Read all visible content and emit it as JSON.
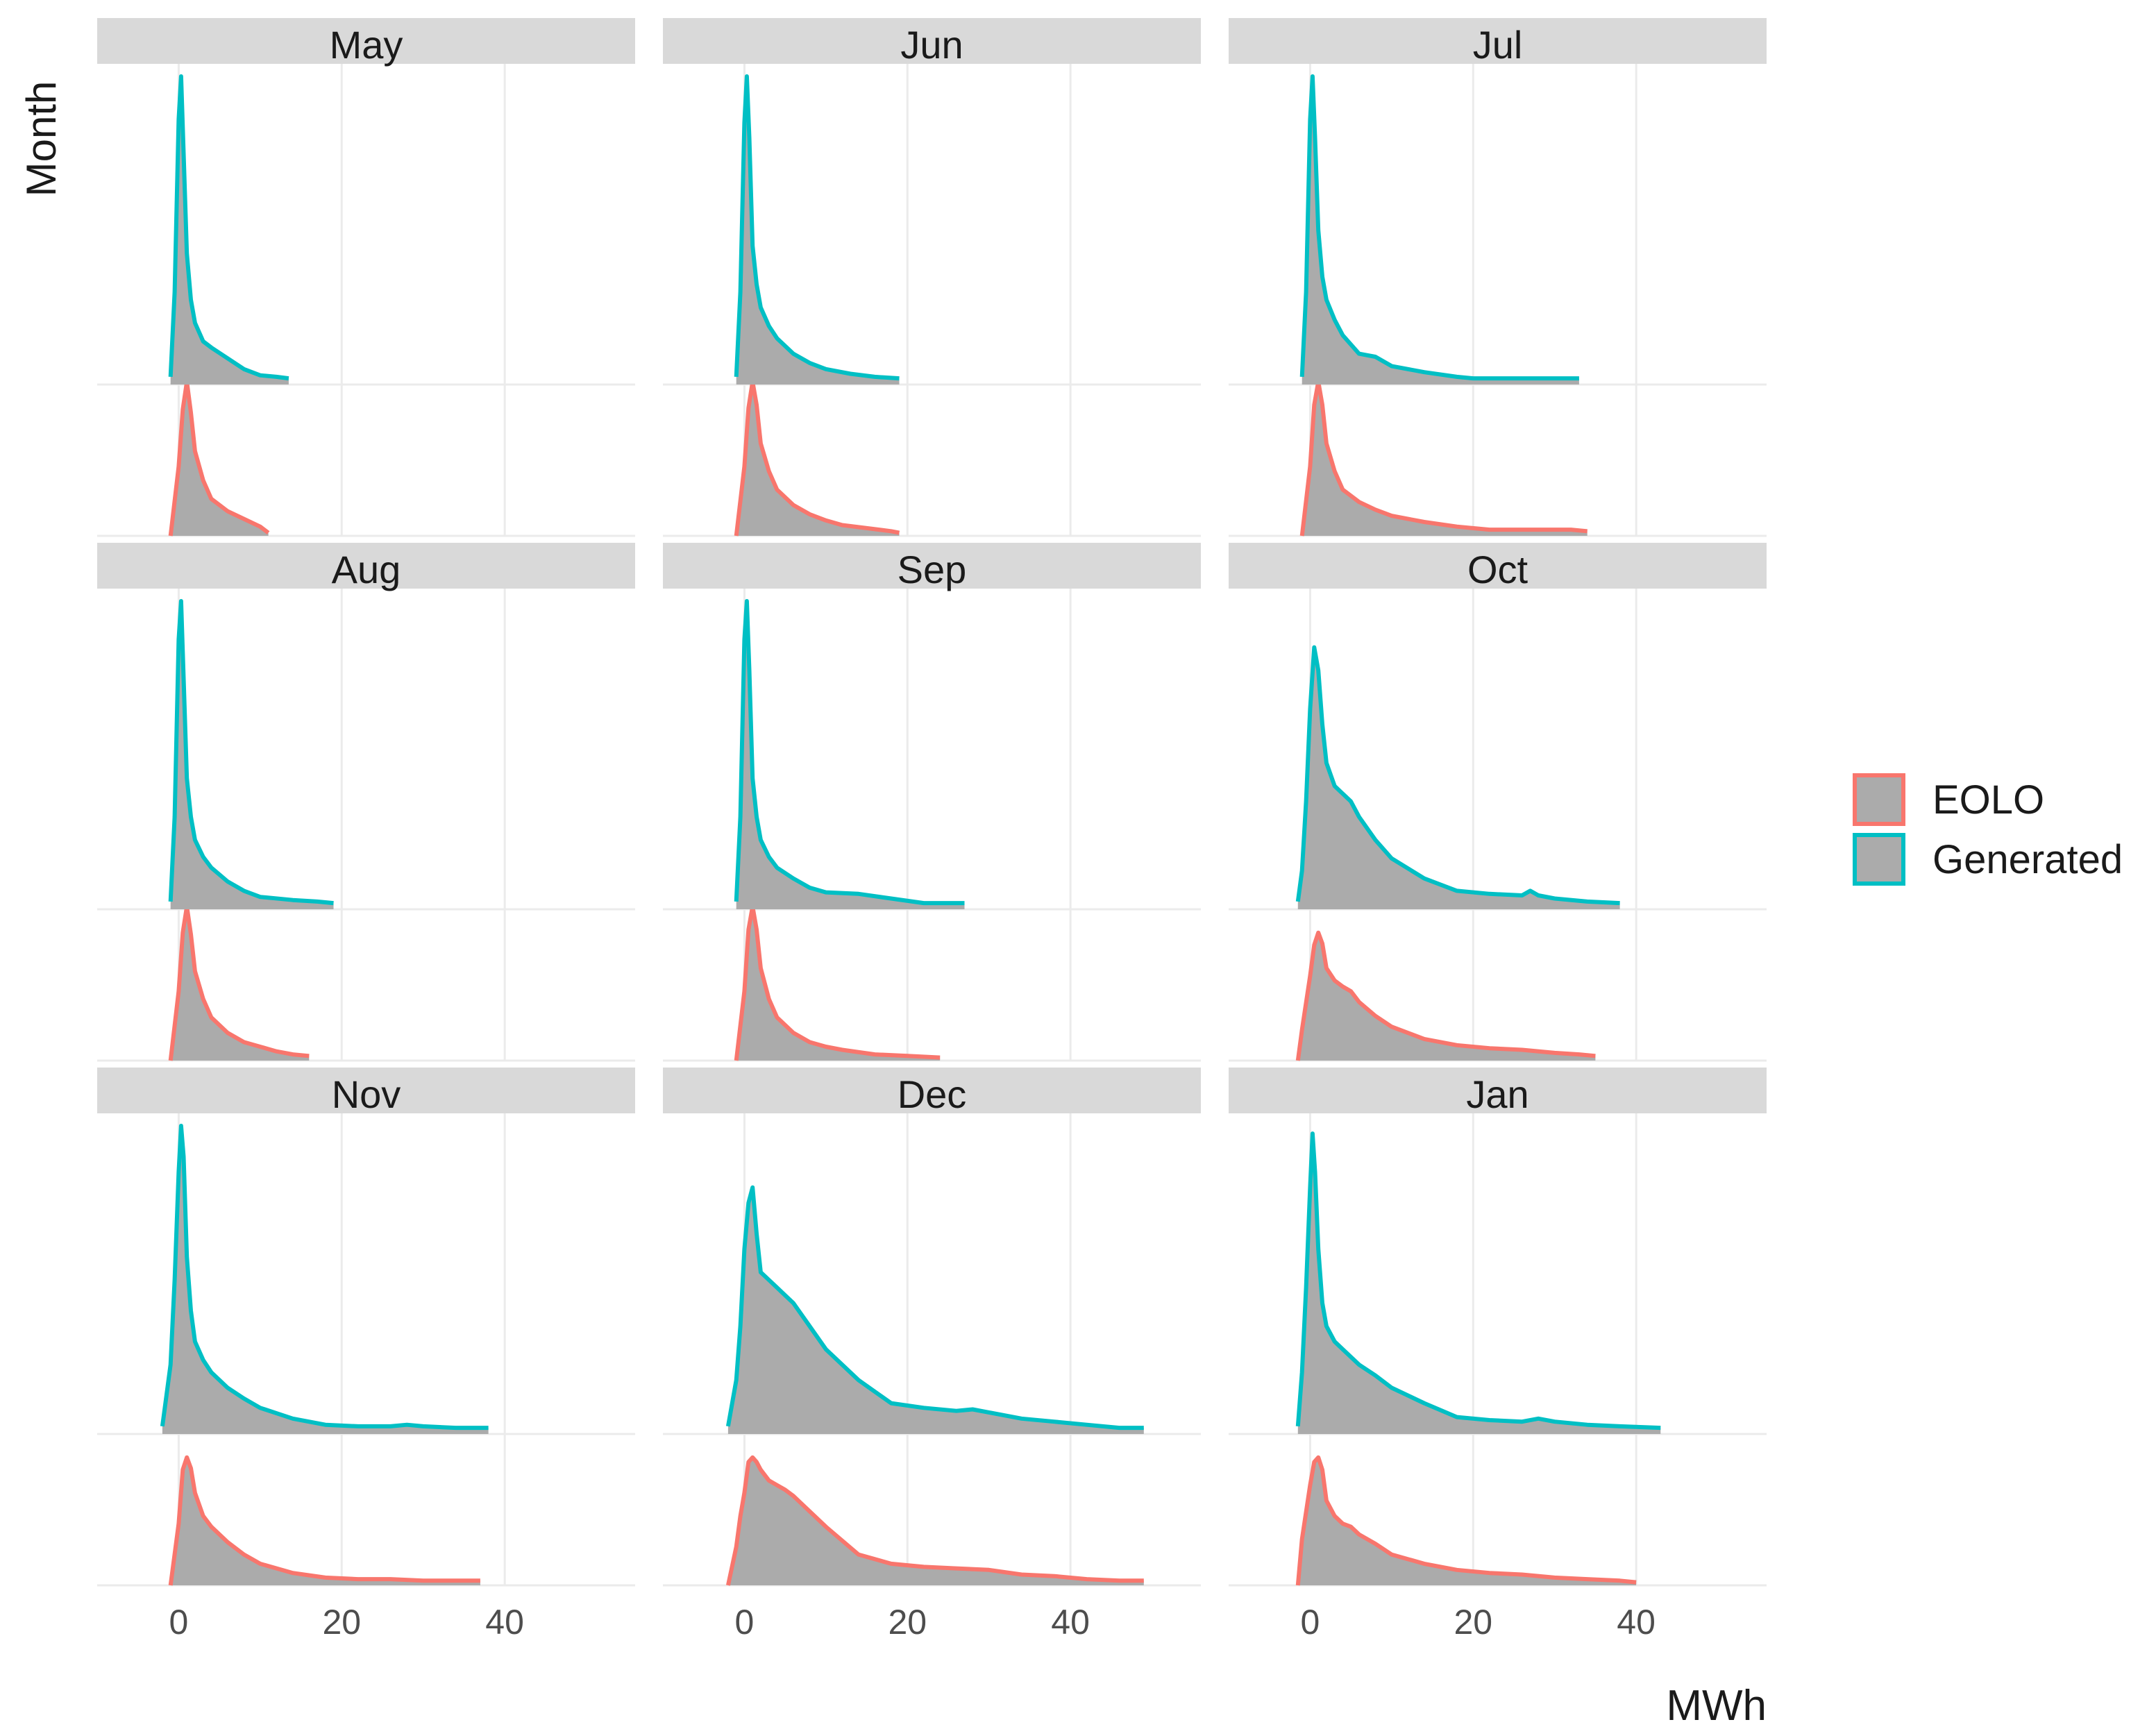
{
  "chart_data": {
    "type": "area",
    "subtype": "faceted ridgeline density",
    "xlabel": "MWh",
    "ylabel": "Month",
    "xlim": [
      -10,
      56
    ],
    "x_ticks": [
      0,
      20,
      40
    ],
    "grid": true,
    "legend_position": "right",
    "legend": [
      {
        "name": "EOLO",
        "color": "#F8766D",
        "fill": "#ABABAB"
      },
      {
        "name": "Generated",
        "color": "#00BFC4",
        "fill": "#ABABAB"
      }
    ],
    "series_order_bottom_to_top": [
      "EOLO",
      "Generated"
    ],
    "facets": [
      {
        "label": "May",
        "EOLO": {
          "x": [
            -1,
            0,
            0.5,
            1,
            1.5,
            2,
            3,
            4,
            6,
            8,
            10,
            11
          ],
          "y": [
            0,
            0.45,
            0.82,
            1.0,
            0.8,
            0.55,
            0.36,
            0.24,
            0.16,
            0.11,
            0.06,
            0.02
          ]
        },
        "Generated": {
          "x": [
            -1,
            -0.5,
            0,
            0.3,
            0.6,
            1,
            1.5,
            2,
            3,
            4,
            6,
            8,
            10,
            12,
            13.5
          ],
          "y": [
            0.05,
            0.6,
            1.72,
            2.0,
            1.5,
            0.85,
            0.55,
            0.4,
            0.28,
            0.24,
            0.17,
            0.1,
            0.06,
            0.05,
            0.04
          ]
        }
      },
      {
        "label": "Jun",
        "EOLO": {
          "x": [
            -1,
            0,
            0.5,
            1,
            1.5,
            2,
            3,
            4,
            6,
            8,
            10,
            12,
            15,
            18,
            19
          ],
          "y": [
            0,
            0.45,
            0.83,
            1.0,
            0.85,
            0.6,
            0.42,
            0.3,
            0.2,
            0.14,
            0.1,
            0.07,
            0.05,
            0.03,
            0.02
          ]
        },
        "Generated": {
          "x": [
            -1,
            -0.5,
            0,
            0.3,
            0.6,
            1,
            1.5,
            2,
            3,
            4,
            6,
            8,
            10,
            13,
            16,
            19
          ],
          "y": [
            0.05,
            0.6,
            1.7,
            2.0,
            1.6,
            0.9,
            0.65,
            0.5,
            0.38,
            0.3,
            0.2,
            0.14,
            0.1,
            0.07,
            0.05,
            0.04
          ]
        }
      },
      {
        "label": "Jul",
        "EOLO": {
          "x": [
            -1,
            0,
            0.5,
            1,
            1.5,
            2,
            3,
            4,
            6,
            8,
            10,
            14,
            18,
            22,
            32,
            34
          ],
          "y": [
            0,
            0.45,
            0.85,
            1.0,
            0.85,
            0.6,
            0.42,
            0.3,
            0.22,
            0.17,
            0.13,
            0.09,
            0.06,
            0.04,
            0.04,
            0.03
          ]
        },
        "Generated": {
          "x": [
            -1,
            -0.5,
            0,
            0.3,
            0.6,
            1,
            1.5,
            2,
            3,
            4,
            6,
            8,
            10,
            14,
            18,
            20,
            24,
            32,
            33
          ],
          "y": [
            0.05,
            0.6,
            1.72,
            2.0,
            1.6,
            1.0,
            0.7,
            0.55,
            0.42,
            0.32,
            0.2,
            0.18,
            0.12,
            0.08,
            0.05,
            0.04,
            0.04,
            0.04,
            0.04
          ]
        }
      },
      {
        "label": "Aug",
        "EOLO": {
          "x": [
            -1,
            0,
            0.5,
            1,
            1.5,
            2,
            3,
            4,
            6,
            8,
            10,
            12,
            14,
            16
          ],
          "y": [
            0,
            0.45,
            0.83,
            1.0,
            0.82,
            0.58,
            0.4,
            0.28,
            0.18,
            0.12,
            0.09,
            0.06,
            0.04,
            0.03
          ]
        },
        "Generated": {
          "x": [
            -1,
            -0.5,
            0,
            0.3,
            0.6,
            1,
            1.5,
            2,
            3,
            4,
            6,
            8,
            10,
            14,
            17,
            19
          ],
          "y": [
            0.05,
            0.6,
            1.75,
            2.0,
            1.5,
            0.85,
            0.6,
            0.45,
            0.34,
            0.27,
            0.18,
            0.12,
            0.08,
            0.06,
            0.05,
            0.04
          ]
        }
      },
      {
        "label": "Sep",
        "EOLO": {
          "x": [
            -1,
            0,
            0.5,
            1,
            1.5,
            2,
            3,
            4,
            6,
            8,
            10,
            12,
            16,
            20,
            24
          ],
          "y": [
            0,
            0.45,
            0.85,
            1.0,
            0.85,
            0.6,
            0.4,
            0.28,
            0.18,
            0.12,
            0.09,
            0.07,
            0.04,
            0.03,
            0.02
          ]
        },
        "Generated": {
          "x": [
            -1,
            -0.5,
            0,
            0.3,
            0.6,
            1,
            1.5,
            2,
            3,
            4,
            6,
            8,
            10,
            14,
            18,
            22,
            27
          ],
          "y": [
            0.05,
            0.6,
            1.75,
            2.0,
            1.55,
            0.85,
            0.6,
            0.45,
            0.34,
            0.27,
            0.2,
            0.14,
            0.11,
            0.1,
            0.07,
            0.04,
            0.04
          ]
        }
      },
      {
        "label": "Oct",
        "EOLO": {
          "x": [
            -1.5,
            -1,
            0,
            0.5,
            1,
            1.5,
            2,
            3,
            4,
            5,
            6,
            8,
            10,
            14,
            18,
            22,
            26,
            30,
            33,
            35
          ],
          "y": [
            0,
            0.2,
            0.55,
            0.75,
            0.83,
            0.76,
            0.6,
            0.52,
            0.48,
            0.45,
            0.38,
            0.29,
            0.22,
            0.14,
            0.1,
            0.08,
            0.07,
            0.05,
            0.04,
            0.03
          ]
        },
        "Generated": {
          "x": [
            -1.5,
            -1,
            -0.5,
            0,
            0.5,
            1,
            1.5,
            2,
            3,
            4,
            5,
            6,
            8,
            10,
            14,
            18,
            22,
            26,
            27,
            28,
            30,
            34,
            38
          ],
          "y": [
            0.05,
            0.25,
            0.7,
            1.3,
            1.7,
            1.55,
            1.2,
            0.95,
            0.8,
            0.75,
            0.7,
            0.6,
            0.45,
            0.33,
            0.2,
            0.12,
            0.1,
            0.09,
            0.12,
            0.09,
            0.07,
            0.05,
            0.04
          ]
        }
      },
      {
        "label": "Nov",
        "EOLO": {
          "x": [
            -1,
            0,
            0.5,
            1,
            1.5,
            2,
            3,
            4,
            6,
            8,
            10,
            14,
            18,
            22,
            26,
            30,
            33,
            37
          ],
          "y": [
            0,
            0.4,
            0.75,
            0.83,
            0.76,
            0.6,
            0.45,
            0.38,
            0.28,
            0.2,
            0.14,
            0.08,
            0.05,
            0.04,
            0.04,
            0.03,
            0.03,
            0.03
          ]
        },
        "Generated": {
          "x": [
            -2,
            -1,
            -0.5,
            0,
            0.3,
            0.6,
            1,
            1.5,
            2,
            3,
            4,
            6,
            8,
            10,
            14,
            18,
            22,
            26,
            28,
            30,
            34,
            38
          ],
          "y": [
            0.05,
            0.45,
            1.0,
            1.7,
            2.0,
            1.8,
            1.15,
            0.8,
            0.6,
            0.48,
            0.4,
            0.3,
            0.23,
            0.17,
            0.1,
            0.06,
            0.05,
            0.05,
            0.06,
            0.05,
            0.04,
            0.04
          ]
        }
      },
      {
        "label": "Dec",
        "EOLO": {
          "x": [
            -2,
            -1,
            -0.5,
            0,
            0.5,
            1,
            1.5,
            2,
            3,
            4,
            5,
            6,
            8,
            10,
            12,
            14,
            18,
            22,
            26,
            30,
            34,
            38,
            42,
            46,
            49
          ],
          "y": [
            0,
            0.25,
            0.45,
            0.6,
            0.8,
            0.83,
            0.8,
            0.75,
            0.68,
            0.65,
            0.62,
            0.58,
            0.48,
            0.38,
            0.29,
            0.2,
            0.14,
            0.12,
            0.11,
            0.1,
            0.07,
            0.06,
            0.04,
            0.03,
            0.03
          ]
        },
        "Generated": {
          "x": [
            -2,
            -1,
            -0.5,
            0,
            0.5,
            1,
            1.5,
            2,
            3,
            4,
            5,
            6,
            8,
            10,
            14,
            18,
            22,
            26,
            28,
            30,
            34,
            38,
            42,
            46,
            49
          ],
          "y": [
            0.05,
            0.35,
            0.7,
            1.2,
            1.5,
            1.6,
            1.3,
            1.05,
            1.0,
            0.95,
            0.9,
            0.85,
            0.7,
            0.55,
            0.35,
            0.2,
            0.17,
            0.15,
            0.16,
            0.14,
            0.1,
            0.08,
            0.06,
            0.04,
            0.04
          ]
        }
      },
      {
        "label": "Jan",
        "EOLO": {
          "x": [
            -1.5,
            -1,
            0,
            0.5,
            1,
            1.5,
            2,
            3,
            4,
            5,
            6,
            8,
            10,
            14,
            18,
            22,
            26,
            30,
            34,
            38,
            40
          ],
          "y": [
            0,
            0.3,
            0.65,
            0.8,
            0.83,
            0.75,
            0.55,
            0.45,
            0.4,
            0.38,
            0.33,
            0.27,
            0.2,
            0.14,
            0.1,
            0.08,
            0.07,
            0.05,
            0.04,
            0.03,
            0.02
          ]
        },
        "Generated": {
          "x": [
            -1.5,
            -1,
            -0.5,
            0,
            0.3,
            0.6,
            1,
            1.5,
            2,
            3,
            4,
            6,
            8,
            10,
            14,
            18,
            22,
            26,
            28,
            30,
            34,
            38,
            43
          ],
          "y": [
            0.05,
            0.4,
            0.95,
            1.6,
            1.95,
            1.7,
            1.2,
            0.85,
            0.7,
            0.6,
            0.55,
            0.45,
            0.38,
            0.3,
            0.2,
            0.11,
            0.09,
            0.08,
            0.1,
            0.08,
            0.06,
            0.05,
            0.04
          ]
        }
      }
    ]
  }
}
